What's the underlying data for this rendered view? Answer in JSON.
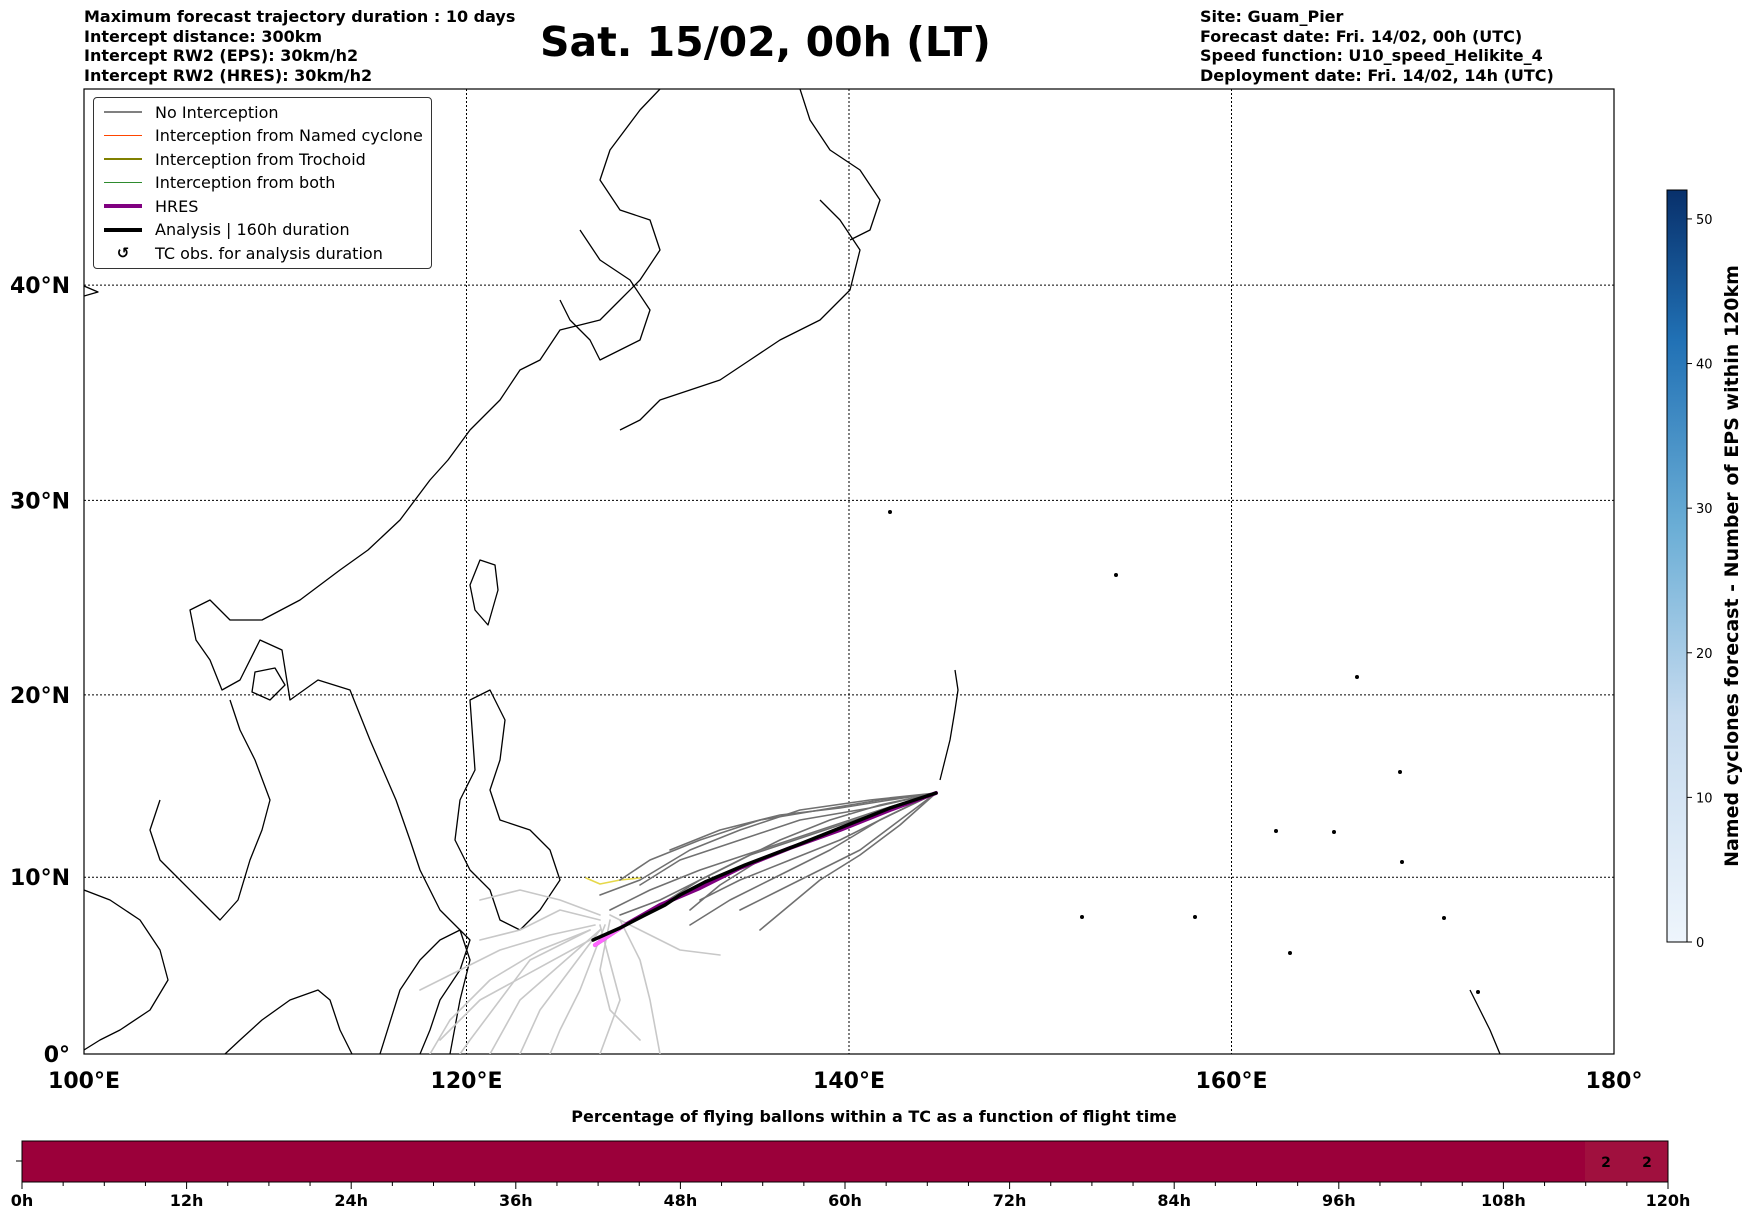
{
  "header_left": [
    "Maximum forecast trajectory duration : 10 days",
    "Intercept distance: 300km",
    "Intercept RW2 (EPS):  30km/h2",
    "Intercept RW2 (HRES): 30km/h2"
  ],
  "title": "Sat. 15/02, 00h (LT)",
  "header_right": [
    "Site: Guam_Pier",
    "Forecast date: Fri. 14/02, 00h (UTC)",
    "Speed function: U10_speed_Helikite_4",
    "Deployment date: Fri. 14/02, 14h (UTC)"
  ],
  "legend": [
    {
      "label": "No Interception",
      "color": "#808080",
      "style": "thin"
    },
    {
      "label": "Interception from Named cyclone",
      "color": "#ff4500",
      "style": "thin"
    },
    {
      "label": "Interception from Trochoid",
      "color": "#808000",
      "style": "thin"
    },
    {
      "label": "Interception from both",
      "color": "#2e8b2e",
      "style": "thin"
    },
    {
      "label": "HRES",
      "color": "#800080",
      "style": "thick"
    },
    {
      "label": "Analysis | 160h duration",
      "color": "#000000",
      "style": "thick"
    },
    {
      "label": "TC obs. for analysis duration",
      "color": "#000000",
      "style": "symbol",
      "symbol": "↺"
    }
  ],
  "map": {
    "lon_ticks": [
      "100°E",
      "120°E",
      "140°E",
      "160°E",
      "180°"
    ],
    "lat_ticks": [
      "0°",
      "10°N",
      "20°N",
      "30°N",
      "40°N"
    ],
    "lon_range": [
      100,
      180
    ],
    "lat_range": [
      0,
      48
    ],
    "site": {
      "name": "Guam_Pier",
      "lon": 144.6,
      "lat": 13.4
    }
  },
  "colorbar": {
    "label": "Named cyclones forecast - Number of EPS within 120km",
    "ticks": [
      "0",
      "10",
      "20",
      "30",
      "40",
      "50"
    ],
    "range": [
      0,
      52
    ]
  },
  "flight_bar": {
    "title": "Percentage of flying ballons within a TC as a function of flight time",
    "ticks": [
      "0h",
      "12h",
      "24h",
      "36h",
      "48h",
      "60h",
      "72h",
      "84h",
      "96h",
      "108h",
      "120h"
    ],
    "cell_labels": [
      "2",
      "2"
    ],
    "color": "#9b003a"
  }
}
